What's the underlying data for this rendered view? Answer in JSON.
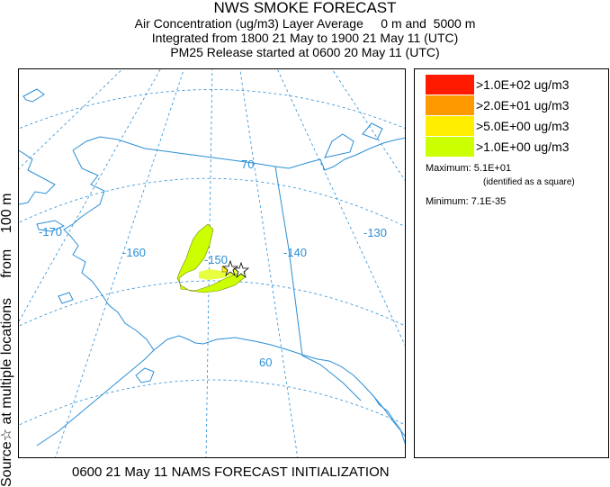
{
  "title": {
    "main": "NWS SMOKE FORECAST",
    "line1": "Air Concentration (ug/m3) Layer Average     0 m and  5000 m",
    "line2": "Integrated from 1800 21 May to 1900 21 May 11 (UTC)",
    "line3": "PM25 Release started at 0600 20 May 11 (UTC)"
  },
  "side_label": "Source☆ at multiple locations     from    100 m",
  "footer": "0600 21 May 11 NAMS FORECAST INITIALIZATION",
  "map": {
    "grid_color": "#2b8fd6",
    "coast_color": "#2b8fd6",
    "labels": {
      "lon_170": "-170",
      "lon_160": "-160",
      "lon_150": "-150",
      "lon_140": "-140",
      "lon_130": "-130",
      "lat_70": "70",
      "lat_60": "60"
    }
  },
  "legend": {
    "items": [
      {
        "label": ">1.0E+02 ug/m3",
        "color": "#ff1a00"
      },
      {
        "label": ">2.0E+01 ug/m3",
        "color": "#ff9900"
      },
      {
        "label": ">5.0E+00 ug/m3",
        "color": "#ffee00"
      },
      {
        "label": ">1.0E+00 ug/m3",
        "color": "#ccff00"
      }
    ],
    "maximum": "Maximum: 5.1E+01",
    "maximum_note": "(identified as a square)",
    "minimum": "Minimum: 7.1E-35"
  }
}
